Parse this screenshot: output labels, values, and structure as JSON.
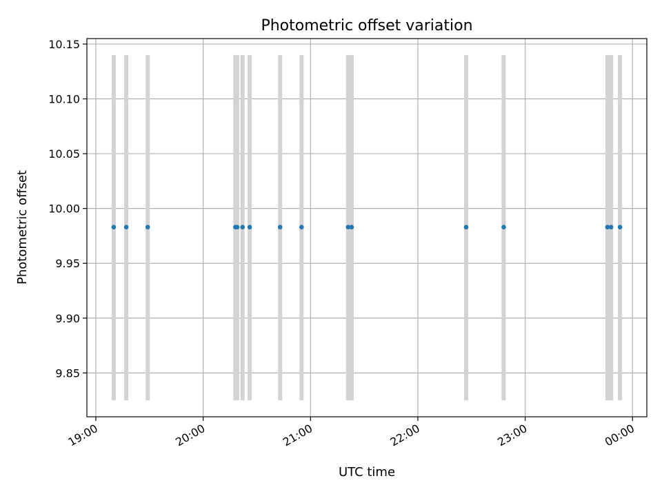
{
  "chart_data": {
    "type": "scatter",
    "title": "Photometric offset variation",
    "xlabel": "UTC time",
    "ylabel": "Photometric offset",
    "x_tick_labels": [
      "19:00",
      "20:00",
      "21:00",
      "22:00",
      "23:00",
      "00:00"
    ],
    "y_tick_labels": [
      "9.85",
      "9.90",
      "9.95",
      "10.00",
      "10.05",
      "10.10",
      "10.15"
    ],
    "y_ticks": [
      9.85,
      9.9,
      9.95,
      10.0,
      10.05,
      10.1,
      10.15
    ],
    "xlim": [
      "18:55",
      "00:08"
    ],
    "ylim": [
      9.81,
      10.155
    ],
    "grid": true,
    "legend": "none",
    "points": {
      "color": "#1f77b4",
      "x": [
        "19:10",
        "19:17",
        "19:29",
        "20:18",
        "20:19",
        "20:22",
        "20:26",
        "20:43",
        "20:55",
        "21:21",
        "21:23",
        "22:27",
        "22:48",
        "23:46",
        "23:48",
        "23:53"
      ],
      "y": [
        9.983,
        9.983,
        9.983,
        9.983,
        9.983,
        9.983,
        9.983,
        9.983,
        9.983,
        9.983,
        9.983,
        9.983,
        9.983,
        9.983,
        9.983,
        9.983
      ]
    },
    "vertical_bands": {
      "color": "#d3d3d3",
      "ymin": 9.825,
      "ymax": 10.14,
      "x": [
        "19:10",
        "19:17",
        "19:29",
        "20:18",
        "20:19",
        "20:22",
        "20:26",
        "20:43",
        "20:55",
        "21:21",
        "21:23",
        "22:27",
        "22:48",
        "23:46",
        "23:48",
        "23:53"
      ]
    }
  }
}
